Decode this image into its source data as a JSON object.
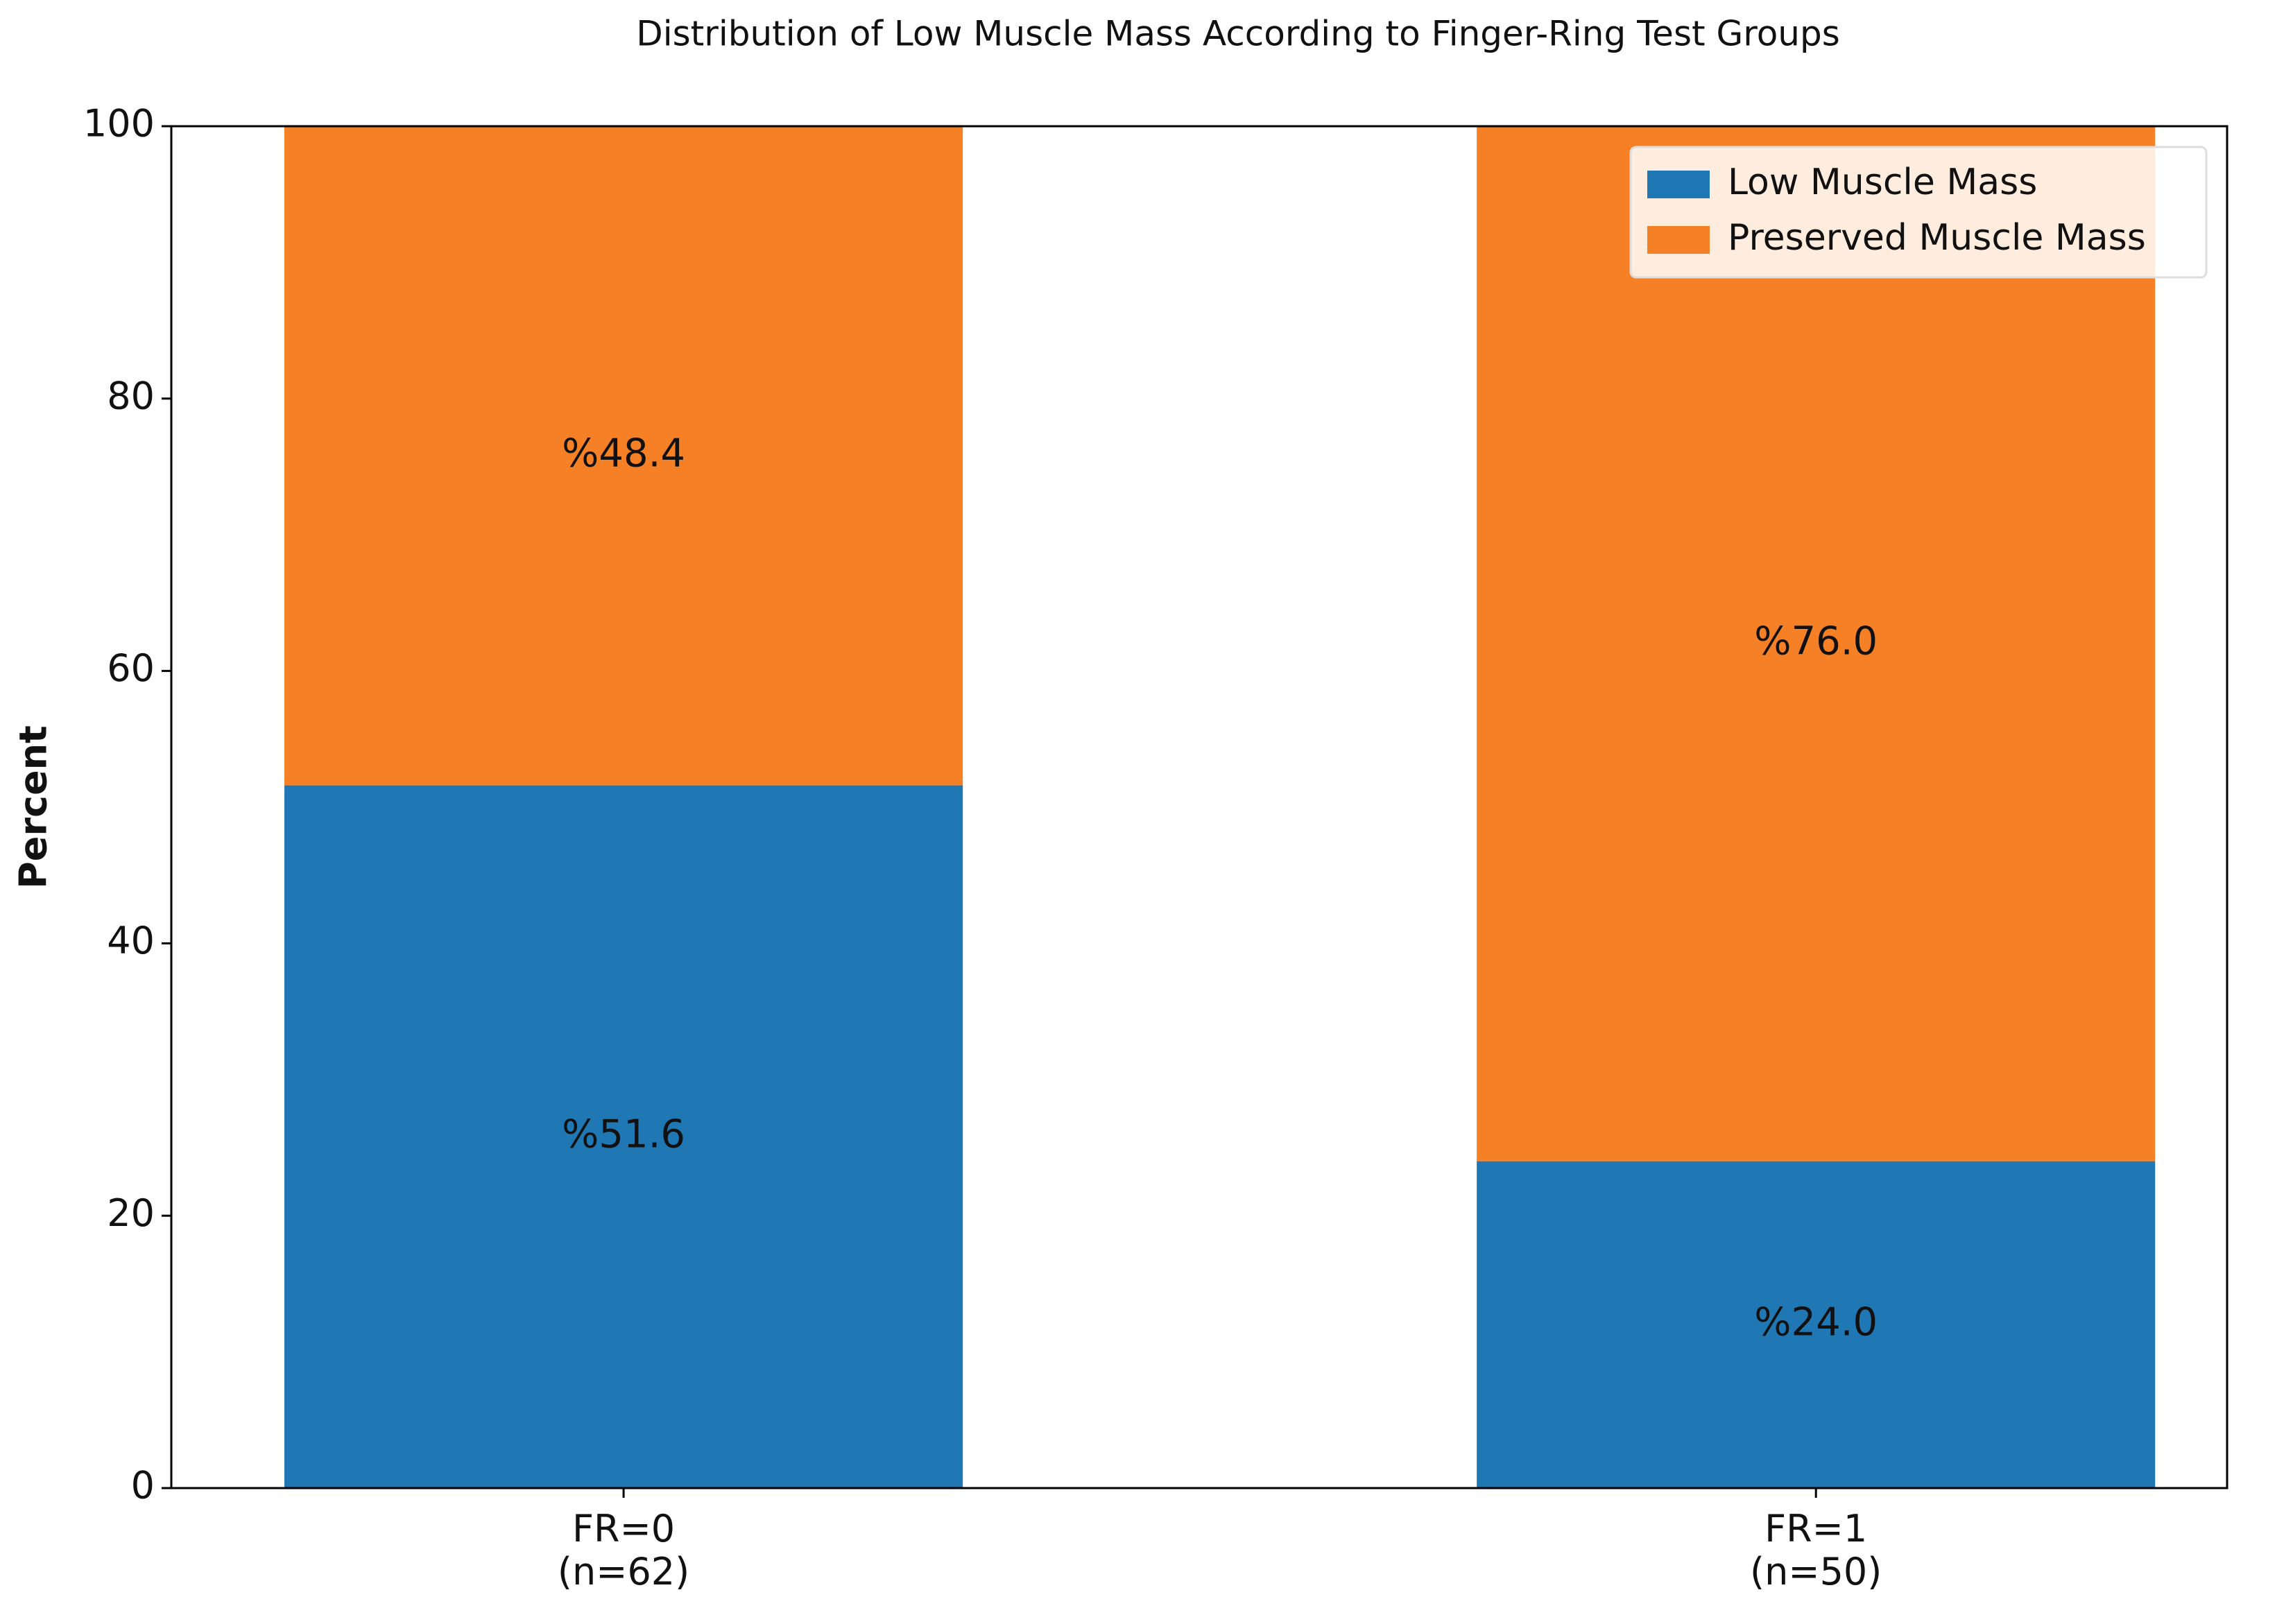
{
  "chart_data": {
    "type": "stacked_bar",
    "title": "Distribution of Low Muscle Mass According to Finger-Ring Test Groups",
    "y_label": "Percent",
    "categories": [
      "FR=0\n(n=62)",
      "FR=1\n(n=50)"
    ],
    "series": [
      {
        "name": "Low Muscle Mass",
        "color": "#1f77b4",
        "values": [
          51.6,
          24.0
        ],
        "value_labels": [
          "%51.6",
          "%24.0"
        ]
      },
      {
        "name": "Preserved Muscle Mass",
        "color": "#f58025",
        "values": [
          48.4,
          76.0
        ],
        "value_labels": [
          "%48.4",
          "%76.0"
        ]
      }
    ],
    "ylim": [
      0,
      100
    ],
    "yticks": [
      0,
      20,
      40,
      60,
      80,
      100
    ],
    "legend": "upper right"
  }
}
